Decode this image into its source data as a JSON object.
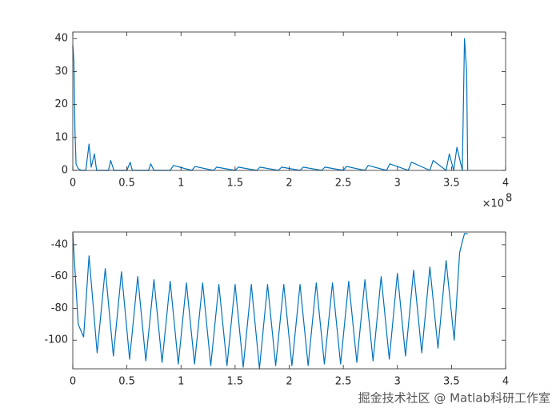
{
  "chart_data": [
    {
      "type": "line",
      "x": [
        0,
        0.01,
        0.02,
        0.03,
        0.05,
        0.08,
        0.12,
        0.15,
        0.17,
        0.2,
        0.22,
        0.33,
        0.35,
        0.38,
        0.5,
        0.53,
        0.55,
        0.7,
        0.72,
        0.75,
        0.9,
        0.93,
        1.1,
        1.13,
        1.3,
        1.33,
        1.5,
        1.53,
        1.7,
        1.73,
        1.9,
        1.93,
        2.1,
        2.13,
        2.3,
        2.33,
        2.5,
        2.53,
        2.7,
        2.73,
        2.9,
        2.93,
        3.1,
        3.13,
        3.3,
        3.33,
        3.45,
        3.48,
        3.52,
        3.55,
        3.6,
        3.62,
        3.64,
        3.65
      ],
      "series": [
        {
          "color": "#0072bd",
          "values": [
            38,
            33,
            12,
            2,
            0.5,
            0,
            0,
            8,
            1,
            5,
            0,
            0,
            3,
            0,
            0,
            2.5,
            0,
            0,
            2,
            0,
            0,
            1.5,
            0,
            1.2,
            0,
            1,
            0,
            1,
            0,
            1,
            0,
            1,
            0,
            1,
            0,
            1,
            0,
            1.2,
            0,
            1.5,
            0,
            2,
            0,
            2.5,
            0,
            3,
            0,
            5,
            0,
            7,
            0,
            40,
            30,
            0
          ]
        }
      ],
      "xlim": [
        0,
        4
      ],
      "xticks": [
        0,
        0.5,
        1,
        1.5,
        2,
        2.5,
        3,
        3.5,
        4
      ],
      "ylim": [
        0,
        42
      ],
      "yticks": [
        0,
        10,
        20,
        30,
        40
      ],
      "x_exponent_base": "×10",
      "x_exponent": "8"
    },
    {
      "type": "line",
      "x": [
        0,
        0.05,
        0.1,
        0.15,
        0.225,
        0.3,
        0.375,
        0.45,
        0.525,
        0.6,
        0.675,
        0.75,
        0.825,
        0.9,
        0.975,
        1.05,
        1.125,
        1.2,
        1.275,
        1.35,
        1.425,
        1.5,
        1.575,
        1.65,
        1.725,
        1.8,
        1.875,
        1.95,
        2.025,
        2.1,
        2.175,
        2.25,
        2.325,
        2.4,
        2.475,
        2.55,
        2.625,
        2.7,
        2.775,
        2.85,
        2.925,
        3.0,
        3.075,
        3.15,
        3.225,
        3.3,
        3.375,
        3.45,
        3.525,
        3.575,
        3.6,
        3.62,
        3.65
      ],
      "series": [
        {
          "color": "#0072bd",
          "values": [
            -33,
            -90,
            -98,
            -47,
            -108,
            -55,
            -110,
            -57,
            -112,
            -60,
            -113,
            -62,
            -114,
            -63,
            -115,
            -64,
            -115,
            -64,
            -116,
            -65,
            -116,
            -65,
            -117,
            -65,
            -118,
            -65,
            -116,
            -65,
            -116,
            -65,
            -116,
            -64,
            -115,
            -64,
            -115,
            -63,
            -114,
            -62,
            -113,
            -60,
            -112,
            -58,
            -110,
            -56,
            -108,
            -54,
            -105,
            -50,
            -100,
            -45,
            -38,
            -33,
            -33
          ]
        }
      ],
      "xlim": [
        0,
        4
      ],
      "xticks": [
        0,
        0.5,
        1,
        1.5,
        2,
        2.5,
        3,
        3.5,
        4
      ],
      "ylim": [
        -118,
        -32
      ],
      "yticks": [
        -100,
        -80,
        -60,
        -40
      ]
    }
  ],
  "watermark": "掘金技术社区 @ Matlab科研工作室"
}
